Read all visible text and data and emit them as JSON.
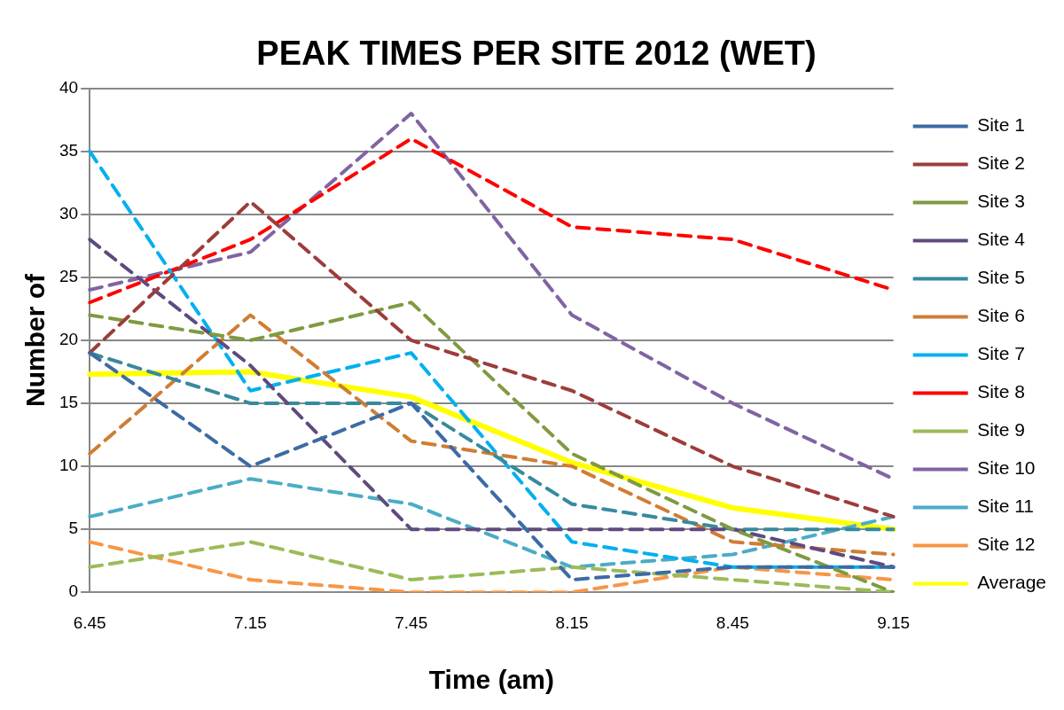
{
  "chart_data": {
    "type": "line",
    "title": "PEAK TIMES PER SITE 2012 (WET)",
    "xlabel": "Time (am)",
    "ylabel": "Number of",
    "categories": [
      "6.45",
      "7.15",
      "7.45",
      "8.15",
      "8.45",
      "9.15"
    ],
    "ylim": [
      0,
      40
    ],
    "yticks": [
      0,
      5,
      10,
      15,
      20,
      25,
      30,
      35,
      40
    ],
    "grid": "y",
    "legend": "right",
    "line_style": "dashed",
    "marker": "none",
    "series": [
      {
        "name": "Site 1",
        "color": "#3c6ba5",
        "values": [
          19,
          10,
          15,
          1,
          2,
          2
        ]
      },
      {
        "name": "Site 2",
        "color": "#9c3d3a",
        "values": [
          19,
          31,
          20,
          16,
          10,
          6
        ]
      },
      {
        "name": "Site 3",
        "color": "#7f9a41",
        "values": [
          22,
          20,
          23,
          11,
          5,
          0
        ]
      },
      {
        "name": "Site 4",
        "color": "#5f4a7f",
        "values": [
          28,
          18,
          5,
          5,
          5,
          2
        ]
      },
      {
        "name": "Site 5",
        "color": "#378a9e",
        "values": [
          19,
          15,
          15,
          7,
          5,
          5
        ]
      },
      {
        "name": "Site 6",
        "color": "#d07d33",
        "values": [
          11,
          22,
          12,
          10,
          4,
          3
        ]
      },
      {
        "name": "Site 7",
        "color": "#00b0f0",
        "values": [
          35,
          16,
          19,
          4,
          2,
          2
        ]
      },
      {
        "name": "Site 8",
        "color": "#ff0000",
        "values": [
          23,
          28,
          36,
          29,
          28,
          24
        ]
      },
      {
        "name": "Site 9",
        "color": "#9bbb59",
        "values": [
          2,
          4,
          1,
          2,
          1,
          0
        ]
      },
      {
        "name": "Site 10",
        "color": "#8064a2",
        "values": [
          24,
          27,
          38,
          22,
          15,
          9
        ]
      },
      {
        "name": "Site 11",
        "color": "#4bacc6",
        "values": [
          6,
          9,
          7,
          2,
          3,
          6
        ]
      },
      {
        "name": "Site 12",
        "color": "#f79646",
        "values": [
          4,
          1,
          0,
          0,
          2,
          1
        ]
      },
      {
        "name": "Average",
        "color": "#ffff00",
        "line_style": "solid",
        "values": [
          17.3,
          17.5,
          15.5,
          10.3,
          6.7,
          5
        ]
      }
    ]
  }
}
